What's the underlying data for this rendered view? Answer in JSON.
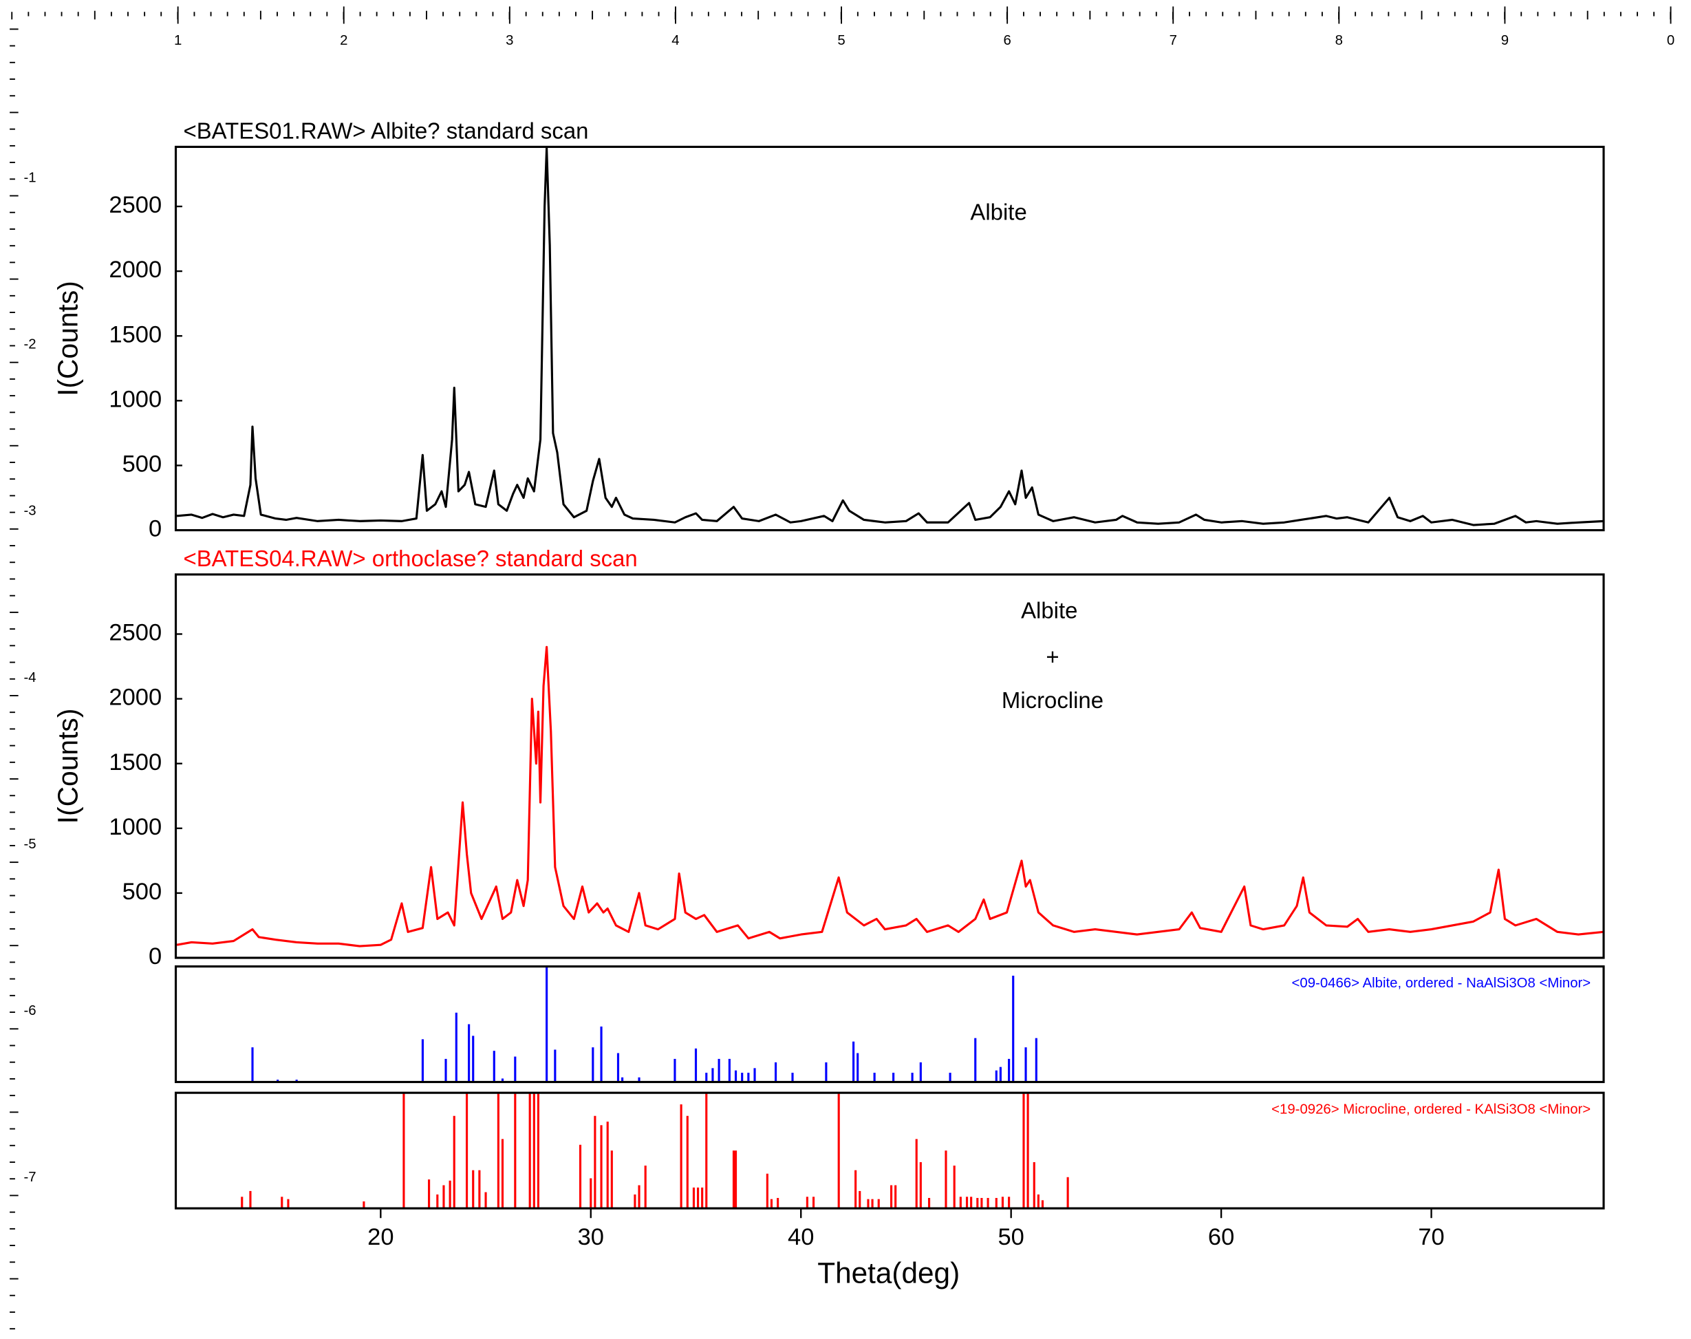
{
  "rulers": {
    "top_labels": [
      "1",
      "2",
      "3",
      "4",
      "5",
      "6",
      "7",
      "8",
      "9",
      "0"
    ],
    "left_labels": [
      "-1",
      "-2",
      "-3",
      "-4",
      "-5",
      "-6",
      "-7"
    ]
  },
  "chart_data": [
    {
      "type": "line",
      "title": "<BATES01.RAW> Albite? standard scan",
      "title_color": "#000000",
      "ylabel": "I(Counts)",
      "annotations": [
        "Albite"
      ],
      "xlim": [
        10.25,
        78.2
      ],
      "ylim": [
        0,
        2960
      ],
      "yticks": [
        0,
        500,
        1000,
        1500,
        2000,
        2500
      ],
      "color": "#000000",
      "x": [
        10.3,
        11,
        11.5,
        12,
        12.5,
        13,
        13.5,
        13.8,
        13.9,
        14.05,
        14.3,
        15,
        15.5,
        16,
        17,
        18,
        19,
        20,
        21,
        21.7,
        22.0,
        22.2,
        22.6,
        22.9,
        23.1,
        23.4,
        23.5,
        23.7,
        24.0,
        24.2,
        24.5,
        25.0,
        25.4,
        25.6,
        26.0,
        26.3,
        26.5,
        26.8,
        27.0,
        27.3,
        27.6,
        27.8,
        27.9,
        28.05,
        28.2,
        28.4,
        28.7,
        29.2,
        29.8,
        30.1,
        30.4,
        30.7,
        31.0,
        31.2,
        31.6,
        32,
        33,
        34,
        34.5,
        35.0,
        35.3,
        36,
        36.8,
        37.2,
        38,
        38.8,
        39.5,
        40,
        41.1,
        41.5,
        42.0,
        42.3,
        43,
        44,
        45,
        45.6,
        46,
        47,
        48.0,
        48.3,
        49,
        49.5,
        49.9,
        50.2,
        50.5,
        50.7,
        51.0,
        51.3,
        52,
        53,
        54,
        55,
        55.3,
        56,
        57,
        58,
        58.8,
        59.2,
        60,
        61,
        62,
        63,
        63.8,
        65,
        65.5,
        66,
        67,
        68.0,
        68.4,
        69,
        69.6,
        70,
        71,
        72,
        73,
        74,
        74.5,
        75,
        76,
        77,
        78.2
      ],
      "values": [
        110,
        120,
        95,
        125,
        100,
        120,
        110,
        350,
        800,
        400,
        120,
        90,
        80,
        95,
        70,
        80,
        70,
        75,
        70,
        90,
        580,
        150,
        200,
        300,
        180,
        700,
        1100,
        300,
        350,
        450,
        200,
        180,
        460,
        200,
        150,
        280,
        350,
        250,
        400,
        300,
        700,
        2500,
        2950,
        2200,
        750,
        600,
        200,
        100,
        150,
        380,
        550,
        250,
        180,
        250,
        120,
        90,
        80,
        60,
        100,
        130,
        80,
        70,
        180,
        90,
        70,
        120,
        60,
        70,
        110,
        70,
        230,
        150,
        80,
        60,
        70,
        130,
        60,
        60,
        210,
        80,
        100,
        180,
        300,
        200,
        460,
        250,
        330,
        120,
        70,
        100,
        60,
        80,
        110,
        60,
        50,
        60,
        120,
        80,
        60,
        70,
        50,
        60,
        80,
        110,
        90,
        100,
        60,
        250,
        100,
        70,
        110,
        60,
        80,
        40,
        50,
        110,
        60,
        70,
        50,
        60,
        70
      ]
    },
    {
      "type": "line",
      "title": "<BATES04.RAW> orthoclase? standard scan",
      "title_color": "#ff0000",
      "ylabel": "I(Counts)",
      "annotations": [
        "Albite",
        "+",
        "Microcline"
      ],
      "xlim": [
        10.25,
        78.2
      ],
      "ylim": [
        0,
        2960
      ],
      "yticks": [
        0,
        500,
        1000,
        1500,
        2000,
        2500
      ],
      "color": "#ff0000",
      "x": [
        10.3,
        11,
        12,
        13,
        13.7,
        13.9,
        14.2,
        15,
        16,
        17,
        18,
        19,
        20,
        20.5,
        21.0,
        21.3,
        22.0,
        22.4,
        22.7,
        23.2,
        23.5,
        23.9,
        24.1,
        24.3,
        24.8,
        25.5,
        25.8,
        26.2,
        26.5,
        26.8,
        27.0,
        27.2,
        27.4,
        27.5,
        27.6,
        27.75,
        27.9,
        28.1,
        28.3,
        28.7,
        29.2,
        29.6,
        29.9,
        30.3,
        30.6,
        30.8,
        31.2,
        31.8,
        32.3,
        32.6,
        33.2,
        34.0,
        34.2,
        34.5,
        35.0,
        35.4,
        36,
        37,
        37.5,
        38.5,
        39,
        40,
        41,
        41.8,
        42.2,
        43,
        43.6,
        44,
        45,
        45.5,
        46,
        47,
        47.5,
        48.3,
        48.7,
        49,
        49.8,
        50.5,
        50.7,
        50.9,
        51.3,
        52,
        53,
        54,
        55,
        56,
        57,
        58,
        58.6,
        59,
        60,
        61.1,
        61.4,
        62,
        63,
        63.6,
        63.9,
        64.2,
        65,
        66,
        66.5,
        67,
        68,
        69,
        70,
        71,
        72,
        72.8,
        73.2,
        73.5,
        74,
        75,
        76,
        77,
        78.2
      ],
      "values": [
        100,
        120,
        110,
        130,
        200,
        220,
        160,
        140,
        120,
        110,
        110,
        90,
        100,
        140,
        420,
        200,
        230,
        700,
        300,
        350,
        250,
        1200,
        800,
        500,
        300,
        550,
        300,
        350,
        600,
        400,
        600,
        2000,
        1500,
        1900,
        1200,
        2100,
        2400,
        1750,
        700,
        400,
        300,
        550,
        350,
        420,
        350,
        380,
        250,
        200,
        500,
        250,
        220,
        300,
        650,
        350,
        300,
        330,
        200,
        250,
        150,
        200,
        150,
        180,
        200,
        620,
        350,
        250,
        300,
        220,
        250,
        300,
        200,
        250,
        200,
        300,
        450,
        300,
        350,
        750,
        550,
        600,
        350,
        250,
        200,
        220,
        200,
        180,
        200,
        220,
        350,
        230,
        200,
        550,
        250,
        220,
        250,
        400,
        620,
        350,
        250,
        240,
        300,
        200,
        220,
        200,
        220,
        250,
        280,
        350,
        680,
        300,
        250,
        300,
        200,
        180,
        200
      ]
    },
    {
      "type": "stick",
      "xlim": [
        10.25,
        78.2
      ],
      "ylim": [
        0,
        100
      ],
      "x": [
        13.9,
        15.1,
        16.0,
        22.0,
        23.1,
        23.6,
        24.2,
        24.4,
        25.4,
        25.8,
        26.4,
        27.9,
        28.3,
        30.1,
        30.5,
        31.3,
        31.5,
        32.3,
        34.0,
        35.0,
        35.5,
        35.8,
        36.1,
        36.6,
        36.9,
        37.2,
        37.5,
        37.8,
        38.8,
        39.6,
        41.2,
        42.5,
        42.7,
        43.5,
        44.4,
        45.3,
        45.7,
        47.1,
        48.3,
        49.3,
        49.5,
        49.9,
        50.1,
        50.7,
        51.2
      ],
      "series": [
        {
          "name": "<09-0466> Albite, ordered - NaAlSi3O8 <Minor>",
          "color": "#0000ff",
          "values": [
            30,
            2,
            2,
            37,
            20,
            60,
            50,
            40,
            27,
            3,
            22,
            100,
            28,
            30,
            48,
            25,
            4,
            4,
            20,
            29,
            8,
            12,
            20,
            20,
            10,
            8,
            8,
            12,
            17,
            8,
            17,
            35,
            25,
            8,
            8,
            8,
            17,
            8,
            38,
            10,
            13,
            20,
            92,
            30,
            38
          ]
        }
      ]
    },
    {
      "type": "stick",
      "xlim": [
        10.25,
        78.2
      ],
      "ylim": [
        0,
        100
      ],
      "xlabel": "Theta(deg)",
      "xticks": [
        20,
        30,
        40,
        50,
        60,
        70
      ],
      "x": [
        13.4,
        13.8,
        15.3,
        15.6,
        19.2,
        21.1,
        22.3,
        22.7,
        23.0,
        23.3,
        23.5,
        24.1,
        24.4,
        24.7,
        25.0,
        25.6,
        25.8,
        26.4,
        27.1,
        27.3,
        27.5,
        29.5,
        30.0,
        30.2,
        30.5,
        30.8,
        31.0,
        32.1,
        32.3,
        32.6,
        34.3,
        34.6,
        34.9,
        35.1,
        35.3,
        35.5,
        36.8,
        36.9,
        38.4,
        38.6,
        38.9,
        40.3,
        40.6,
        41.8,
        42.6,
        42.8,
        43.2,
        43.4,
        43.7,
        44.3,
        44.5,
        45.5,
        45.7,
        46.1,
        46.9,
        47.3,
        47.6,
        47.9,
        48.1,
        48.4,
        48.6,
        48.9,
        49.3,
        49.6,
        49.9,
        50.6,
        50.8,
        51.1,
        51.3,
        51.5,
        52.7
      ],
      "series": [
        {
          "name": "<19-0926> Microcline, ordered - KAlSi3O8 <Minor>",
          "color": "#ff0000",
          "values": [
            10,
            15,
            10,
            8,
            6,
            100,
            25,
            12,
            20,
            24,
            80,
            100,
            33,
            33,
            14,
            100,
            60,
            100,
            100,
            100,
            100,
            55,
            26,
            80,
            72,
            75,
            50,
            12,
            20,
            37,
            90,
            80,
            18,
            18,
            18,
            100,
            50,
            50,
            30,
            8,
            9,
            10,
            10,
            100,
            33,
            15,
            8,
            8,
            8,
            20,
            20,
            60,
            40,
            9,
            50,
            37,
            10,
            10,
            10,
            9,
            9,
            9,
            9,
            10,
            10,
            100,
            100,
            40,
            12,
            7,
            27
          ]
        }
      ]
    }
  ]
}
